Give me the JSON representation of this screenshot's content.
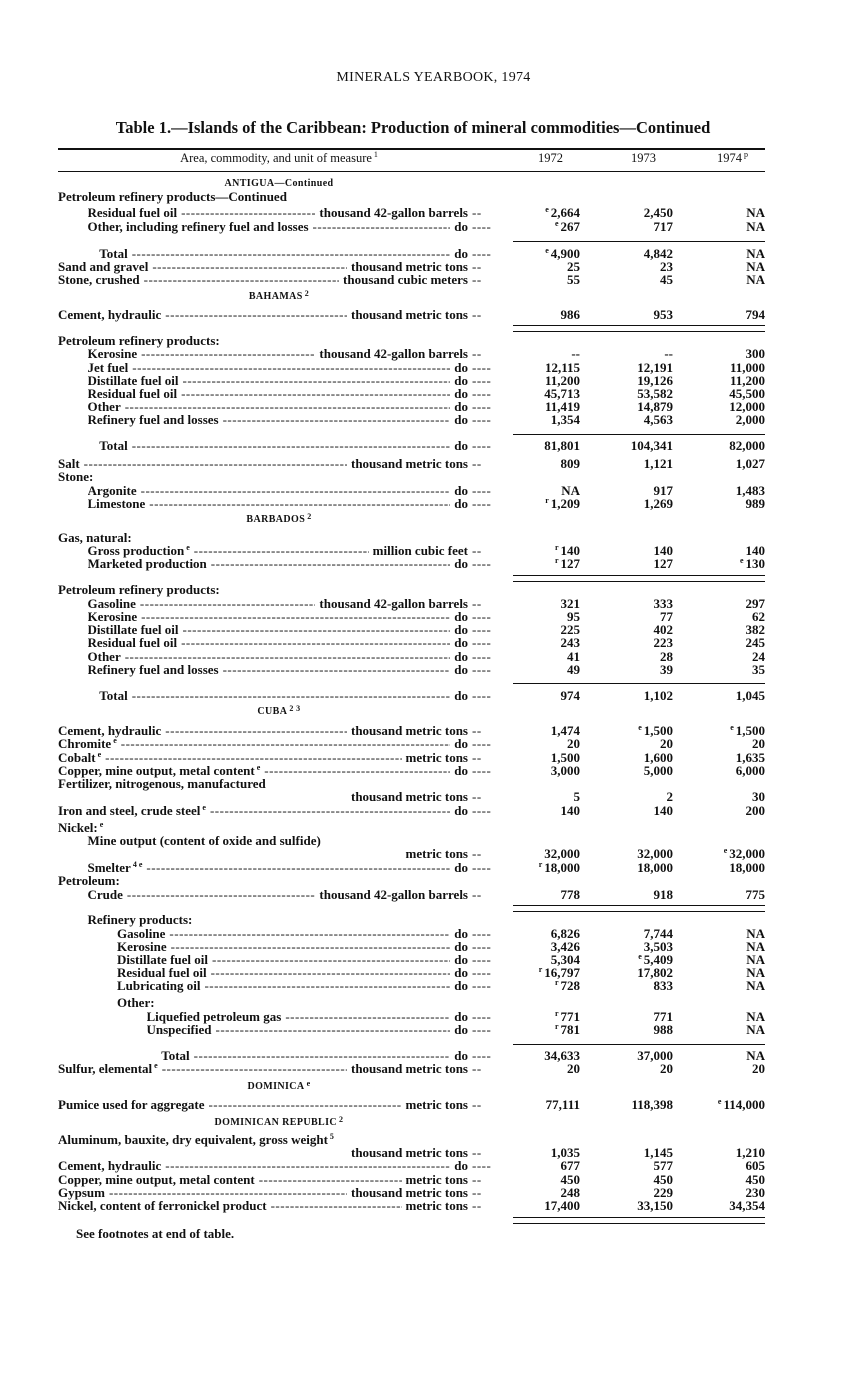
{
  "running_head": "MINERALS YEARBOOK, 1974",
  "table_title": "Table 1.—Islands of the Caribbean:  Production of mineral commodities—Continued",
  "columns": {
    "label": "Area, commodity, and unit of measure",
    "label_sup": "1",
    "years": [
      "1972",
      "1973",
      "1974"
    ],
    "last_year_mark": "p"
  },
  "rows": [
    {
      "type": "section",
      "text": "ANTIGUA—Continued"
    },
    {
      "type": "head",
      "indent": 0,
      "label": "Petroleum refinery products—Continued"
    },
    {
      "type": "row",
      "indent": 1,
      "label": "Residual fuel oil",
      "unit": "thousand 42-gallon barrels",
      "v": [
        {
          "m": "e",
          "v": "2,664"
        },
        {
          "v": "2,450"
        },
        {
          "v": "NA"
        }
      ]
    },
    {
      "type": "row",
      "indent": 1,
      "label": "Other, including refinery fuel and losses",
      "unit": "do",
      "v": [
        {
          "m": "e",
          "v": "267"
        },
        {
          "v": "717"
        },
        {
          "v": "NA"
        }
      ]
    },
    {
      "type": "row",
      "indent": 1.4,
      "label": "Total",
      "unit": "do",
      "v": [
        {
          "m": "e",
          "v": "4,900"
        },
        {
          "v": "4,842"
        },
        {
          "v": "NA"
        }
      ]
    },
    {
      "type": "row",
      "indent": 0,
      "label": "Sand and gravel",
      "unit": "thousand metric tons",
      "v": [
        {
          "v": "25"
        },
        {
          "v": "23"
        },
        {
          "v": "NA"
        }
      ]
    },
    {
      "type": "row",
      "indent": 0,
      "label": "Stone, crushed",
      "unit": "thousand cubic meters",
      "v": [
        {
          "v": "55"
        },
        {
          "v": "45"
        },
        {
          "v": "NA"
        }
      ]
    },
    {
      "type": "section",
      "text": "BAHAMAS",
      "sup": "2"
    },
    {
      "type": "row",
      "indent": 0,
      "label": "Cement, hydraulic",
      "unit": "thousand metric tons",
      "v": [
        {
          "v": "986"
        },
        {
          "v": "953"
        },
        {
          "v": "794"
        }
      ]
    },
    {
      "type": "head",
      "indent": 0,
      "label": "Petroleum refinery products:"
    },
    {
      "type": "row",
      "indent": 1,
      "label": "Kerosine",
      "unit": "thousand 42-gallon barrels",
      "v": [
        {
          "v": "--"
        },
        {
          "v": "--"
        },
        {
          "v": "300"
        }
      ]
    },
    {
      "type": "row",
      "indent": 1,
      "label": "Jet fuel",
      "unit": "do",
      "v": [
        {
          "v": "12,115"
        },
        {
          "v": "12,191"
        },
        {
          "v": "11,000"
        }
      ]
    },
    {
      "type": "row",
      "indent": 1,
      "label": "Distillate fuel oil",
      "unit": "do",
      "v": [
        {
          "v": "11,200"
        },
        {
          "v": "19,126"
        },
        {
          "v": "11,200"
        }
      ]
    },
    {
      "type": "row",
      "indent": 1,
      "label": "Residual fuel oil",
      "unit": "do",
      "v": [
        {
          "v": "45,713"
        },
        {
          "v": "53,582"
        },
        {
          "v": "45,500"
        }
      ]
    },
    {
      "type": "row",
      "indent": 1,
      "label": "Other",
      "unit": "do",
      "v": [
        {
          "v": "11,419"
        },
        {
          "v": "14,879"
        },
        {
          "v": "12,000"
        }
      ]
    },
    {
      "type": "row",
      "indent": 1,
      "label": "Refinery fuel and losses",
      "unit": "do",
      "v": [
        {
          "v": "1,354"
        },
        {
          "v": "4,563"
        },
        {
          "v": "2,000"
        }
      ]
    },
    {
      "type": "row",
      "indent": 1.4,
      "label": "Total",
      "unit": "do",
      "v": [
        {
          "v": "81,801"
        },
        {
          "v": "104,341"
        },
        {
          "v": "82,000"
        }
      ]
    },
    {
      "type": "row",
      "indent": 0,
      "label": "Salt",
      "unit": "thousand metric tons",
      "v": [
        {
          "v": "809"
        },
        {
          "v": "1,121"
        },
        {
          "v": "1,027"
        }
      ]
    },
    {
      "type": "head",
      "indent": 0,
      "label": "Stone:"
    },
    {
      "type": "row",
      "indent": 1,
      "label": "Argonite",
      "unit": "do",
      "v": [
        {
          "v": "NA"
        },
        {
          "v": "917"
        },
        {
          "v": "1,483"
        }
      ]
    },
    {
      "type": "row",
      "indent": 1,
      "label": "Limestone",
      "unit": "do",
      "v": [
        {
          "m": "r",
          "v": "1,209"
        },
        {
          "v": "1,269"
        },
        {
          "v": "989"
        }
      ]
    },
    {
      "type": "section",
      "text": "BARBADOS",
      "sup": "2"
    },
    {
      "type": "head",
      "indent": 0,
      "label": "Gas, natural:"
    },
    {
      "type": "row",
      "indent": 1,
      "label": "Gross production",
      "sup": "e",
      "unit": "million cubic feet",
      "v": [
        {
          "m": "r",
          "v": "140"
        },
        {
          "v": "140"
        },
        {
          "v": "140"
        }
      ]
    },
    {
      "type": "row",
      "indent": 1,
      "label": "Marketed production",
      "unit": "do",
      "v": [
        {
          "m": "r",
          "v": "127"
        },
        {
          "v": "127"
        },
        {
          "m": "e",
          "v": "130"
        }
      ]
    },
    {
      "type": "head",
      "indent": 0,
      "label": "Petroleum refinery products:"
    },
    {
      "type": "row",
      "indent": 1,
      "label": "Gasoline",
      "unit": "thousand 42-gallon barrels",
      "v": [
        {
          "v": "321"
        },
        {
          "v": "333"
        },
        {
          "v": "297"
        }
      ]
    },
    {
      "type": "row",
      "indent": 1,
      "label": "Kerosine",
      "unit": "do",
      "v": [
        {
          "v": "95"
        },
        {
          "v": "77"
        },
        {
          "v": "62"
        }
      ]
    },
    {
      "type": "row",
      "indent": 1,
      "label": "Distillate fuel oil",
      "unit": "do",
      "v": [
        {
          "v": "225"
        },
        {
          "v": "402"
        },
        {
          "v": "382"
        }
      ]
    },
    {
      "type": "row",
      "indent": 1,
      "label": "Residual fuel oil",
      "unit": "do",
      "v": [
        {
          "v": "243"
        },
        {
          "v": "223"
        },
        {
          "v": "245"
        }
      ]
    },
    {
      "type": "row",
      "indent": 1,
      "label": "Other",
      "unit": "do",
      "v": [
        {
          "v": "41"
        },
        {
          "v": "28"
        },
        {
          "v": "24"
        }
      ]
    },
    {
      "type": "row",
      "indent": 1,
      "label": "Refinery fuel and losses",
      "unit": "do",
      "v": [
        {
          "v": "49"
        },
        {
          "v": "39"
        },
        {
          "v": "35"
        }
      ]
    },
    {
      "type": "row",
      "indent": 1.4,
      "label": "Total",
      "unit": "do",
      "v": [
        {
          "v": "974"
        },
        {
          "v": "1,102"
        },
        {
          "v": "1,045"
        }
      ]
    },
    {
      "type": "section",
      "text": "CUBA",
      "sup": "2 3"
    },
    {
      "type": "row",
      "indent": 0,
      "label": "Cement, hydraulic",
      "unit": "thousand metric tons",
      "v": [
        {
          "v": "1,474"
        },
        {
          "m": "e",
          "v": "1,500"
        },
        {
          "m": "e",
          "v": "1,500"
        }
      ]
    },
    {
      "type": "row",
      "indent": 0,
      "label": "Chromite",
      "sup": "e",
      "unit": "do",
      "v": [
        {
          "v": "20"
        },
        {
          "v": "20"
        },
        {
          "v": "20"
        }
      ]
    },
    {
      "type": "row",
      "indent": 0,
      "label": "Cobalt",
      "sup": "e",
      "unit": "metric tons",
      "v": [
        {
          "v": "1,500"
        },
        {
          "v": "1,600"
        },
        {
          "v": "1,635"
        }
      ]
    },
    {
      "type": "row",
      "indent": 0,
      "label": "Copper, mine output, metal content",
      "sup": "e",
      "unit": "do",
      "v": [
        {
          "v": "3,000"
        },
        {
          "v": "5,000"
        },
        {
          "v": "6,000"
        }
      ]
    },
    {
      "type": "head",
      "indent": 0,
      "label": "Fertilizer, nitrogenous, manufactured"
    },
    {
      "type": "cont",
      "unit": "thousand metric tons",
      "v": [
        {
          "v": "5"
        },
        {
          "v": "2"
        },
        {
          "v": "30"
        }
      ]
    },
    {
      "type": "row",
      "indent": 0,
      "label": "Iron and steel, crude steel",
      "sup": "e",
      "unit": "do",
      "v": [
        {
          "v": "140"
        },
        {
          "v": "140"
        },
        {
          "v": "200"
        }
      ]
    },
    {
      "type": "head",
      "indent": 0,
      "label": "Nickel:",
      "sup": "e"
    },
    {
      "type": "head",
      "indent": 1,
      "label": "Mine output (content of oxide and sulfide)"
    },
    {
      "type": "cont",
      "unit": "metric tons",
      "v": [
        {
          "v": "32,000"
        },
        {
          "v": "32,000"
        },
        {
          "m": "e",
          "v": "32,000"
        }
      ]
    },
    {
      "type": "row",
      "indent": 1,
      "label": "Smelter",
      "sup": "4 e",
      "unit": "do",
      "v": [
        {
          "m": "r",
          "v": "18,000"
        },
        {
          "v": "18,000"
        },
        {
          "v": "18,000"
        }
      ]
    },
    {
      "type": "head",
      "indent": 0,
      "label": "Petroleum:"
    },
    {
      "type": "row",
      "indent": 1,
      "label": "Crude",
      "unit": "thousand 42-gallon barrels",
      "v": [
        {
          "v": "778"
        },
        {
          "v": "918"
        },
        {
          "v": "775"
        }
      ]
    },
    {
      "type": "head",
      "indent": 1,
      "label": "Refinery products:"
    },
    {
      "type": "row",
      "indent": 2,
      "label": "Gasoline",
      "unit": "do",
      "v": [
        {
          "v": "6,826"
        },
        {
          "v": "7,744"
        },
        {
          "v": "NA"
        }
      ]
    },
    {
      "type": "row",
      "indent": 2,
      "label": "Kerosine",
      "unit": "do",
      "v": [
        {
          "v": "3,426"
        },
        {
          "v": "3,503"
        },
        {
          "v": "NA"
        }
      ]
    },
    {
      "type": "row",
      "indent": 2,
      "label": "Distillate fuel oil",
      "unit": "do",
      "v": [
        {
          "v": "5,304"
        },
        {
          "m": "e",
          "v": "5,409"
        },
        {
          "v": "NA"
        }
      ]
    },
    {
      "type": "row",
      "indent": 2,
      "label": "Residual fuel oil",
      "unit": "do",
      "v": [
        {
          "m": "r",
          "v": "16,797"
        },
        {
          "v": "17,802"
        },
        {
          "v": "NA"
        }
      ]
    },
    {
      "type": "row",
      "indent": 2,
      "label": "Lubricating oil",
      "unit": "do",
      "v": [
        {
          "m": "r",
          "v": "728"
        },
        {
          "v": "833"
        },
        {
          "v": "NA"
        }
      ]
    },
    {
      "type": "head",
      "indent": 2,
      "label": "Other:"
    },
    {
      "type": "row",
      "indent": 3,
      "label": "Liquefied petroleum gas",
      "unit": "do",
      "v": [
        {
          "m": "r",
          "v": "771"
        },
        {
          "v": "771"
        },
        {
          "v": "NA"
        }
      ]
    },
    {
      "type": "row",
      "indent": 3,
      "label": "Unspecified",
      "unit": "do",
      "v": [
        {
          "m": "r",
          "v": "781"
        },
        {
          "v": "988"
        },
        {
          "v": "NA"
        }
      ]
    },
    {
      "type": "row",
      "indent": 3.5,
      "label": "Total",
      "unit": "do",
      "v": [
        {
          "v": "34,633"
        },
        {
          "v": "37,000"
        },
        {
          "v": "NA"
        }
      ]
    },
    {
      "type": "row",
      "indent": 0,
      "label": "Sulfur, elemental",
      "sup": "e",
      "unit": "thousand metric tons",
      "v": [
        {
          "v": "20"
        },
        {
          "v": "20"
        },
        {
          "v": "20"
        }
      ]
    },
    {
      "type": "section",
      "text": "DOMINICA",
      "sup": "e"
    },
    {
      "type": "row",
      "indent": 0,
      "label": "Pumice used for aggregate",
      "unit": "metric tons",
      "v": [
        {
          "v": "77,111"
        },
        {
          "v": "118,398"
        },
        {
          "m": "e",
          "v": "114,000"
        }
      ]
    },
    {
      "type": "section",
      "text": "DOMINICAN REPUBLIC",
      "sup": "2"
    },
    {
      "type": "head",
      "indent": 0,
      "label": "Aluminum, bauxite, dry equivalent, gross weight",
      "sup": "5"
    },
    {
      "type": "cont",
      "unit": "thousand metric tons",
      "v": [
        {
          "v": "1,035"
        },
        {
          "v": "1,145"
        },
        {
          "v": "1,210"
        }
      ]
    },
    {
      "type": "row",
      "indent": 0,
      "label": "Cement, hydraulic",
      "unit": "do",
      "v": [
        {
          "v": "677"
        },
        {
          "v": "577"
        },
        {
          "v": "605"
        }
      ]
    },
    {
      "type": "row",
      "indent": 0,
      "label": "Copper, mine output, metal content",
      "unit": "metric tons",
      "v": [
        {
          "v": "450"
        },
        {
          "v": "450"
        },
        {
          "v": "450"
        }
      ]
    },
    {
      "type": "row",
      "indent": 0,
      "label": "Gypsum",
      "unit": "thousand metric tons",
      "v": [
        {
          "v": "248"
        },
        {
          "v": "229"
        },
        {
          "v": "230"
        }
      ]
    },
    {
      "type": "row",
      "indent": 0,
      "label": "Nickel, content of ferronickel product",
      "unit": "metric tons",
      "v": [
        {
          "v": "17,400"
        },
        {
          "v": "33,150"
        },
        {
          "v": "34,354"
        }
      ]
    }
  ],
  "footnote_ref": "See footnotes at end of table."
}
